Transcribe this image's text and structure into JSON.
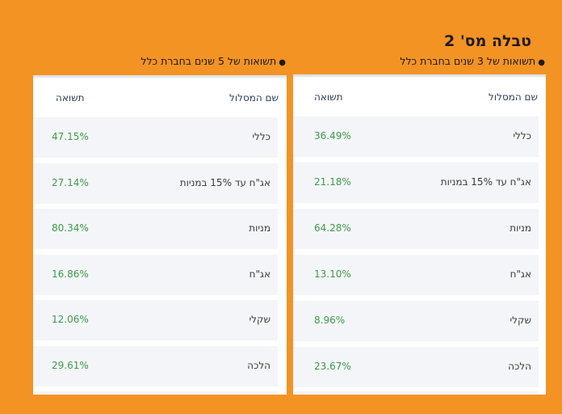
{
  "page_title": "טבלה מס' 2",
  "tables": [
    {
      "id": "right",
      "caption": "תשואות של 3 שנים בחברת כלל",
      "headers": {
        "name": "שם המסלול",
        "return": "תשואה"
      },
      "rows": [
        {
          "name": "כללי",
          "return": "36.49%"
        },
        {
          "name": "אג\"ח עד 15% במניות",
          "return": "21.18%"
        },
        {
          "name": "מניות",
          "return": "64.28%"
        },
        {
          "name": "אג\"ח",
          "return": "13.10%"
        },
        {
          "name": "שקלי",
          "return": "8.96%"
        },
        {
          "name": "הלכה",
          "return": "23.67%"
        }
      ]
    },
    {
      "id": "left",
      "caption": "תשואות של 5 שנים בחברת כלל",
      "headers": {
        "name": "שם המסלול",
        "return": "תשואה"
      },
      "rows": [
        {
          "name": "כללי",
          "return": "47.15%"
        },
        {
          "name": "אג\"ח עד 15% במניות",
          "return": "27.14%"
        },
        {
          "name": "מניות",
          "return": "80.34%"
        },
        {
          "name": "אג\"ח",
          "return": "16.86%"
        },
        {
          "name": "שקלי",
          "return": "12.06%"
        },
        {
          "name": "הלכה",
          "return": "29.61%"
        }
      ]
    }
  ],
  "colors": {
    "background": "#f39324",
    "card": "#ffffff",
    "row": "#f4f5f8",
    "header_text": "#2d3e5c",
    "return_text": "#3d9b48"
  }
}
